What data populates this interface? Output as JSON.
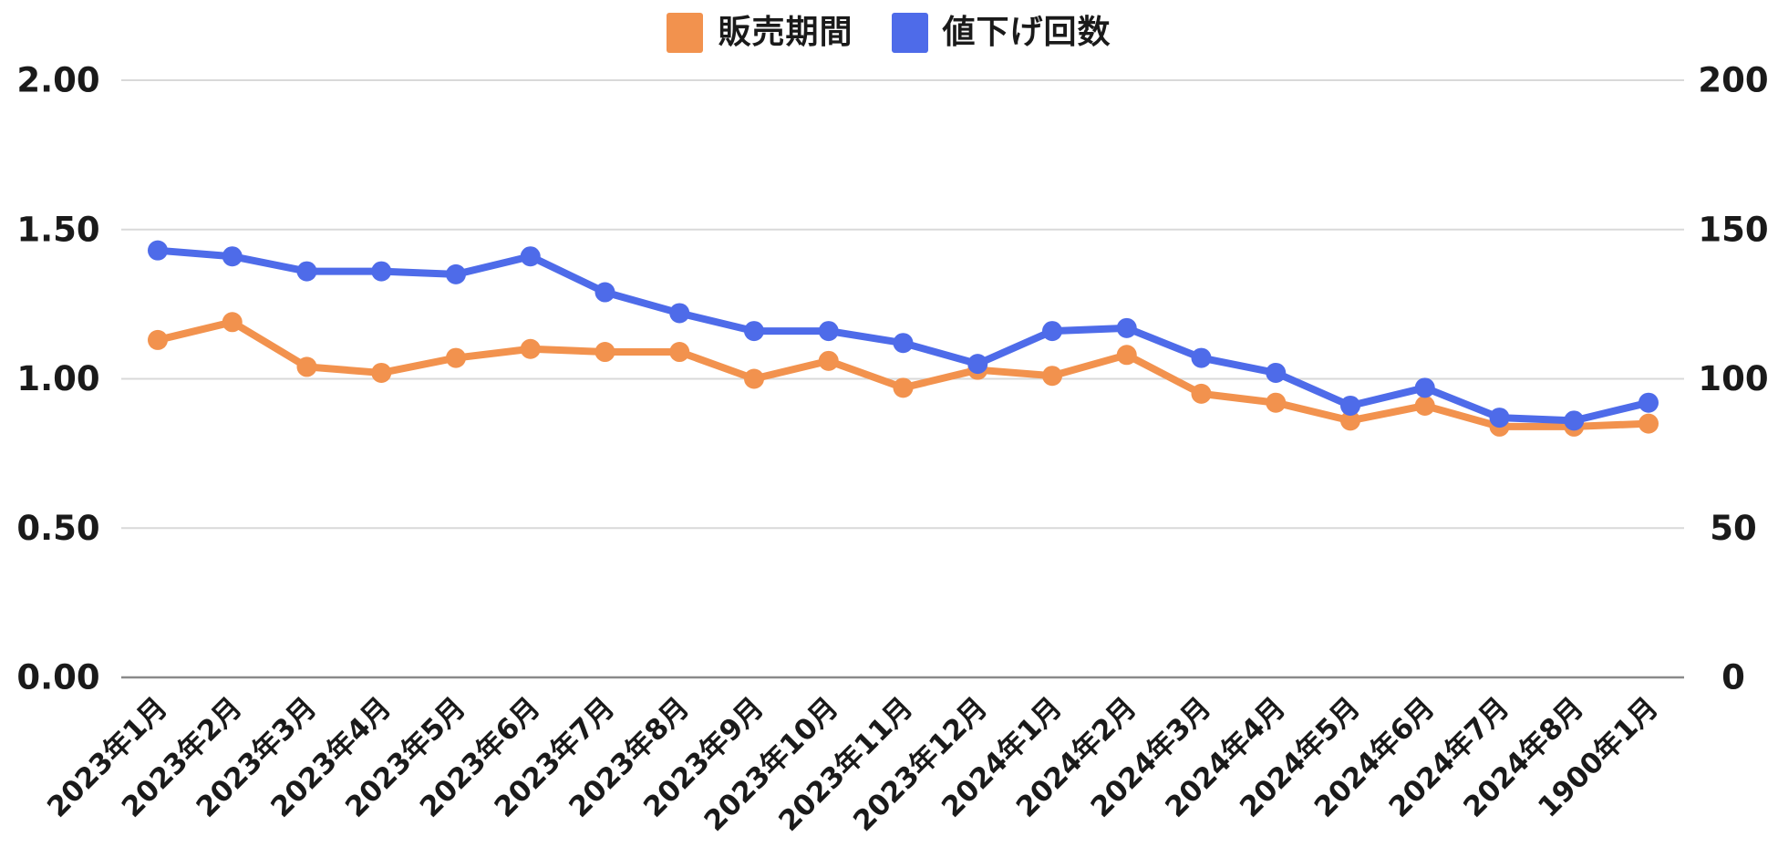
{
  "legend": [
    {
      "label": "販売期間",
      "color": "#F2924E",
      "swatch_icon": "orange-square-swatch"
    },
    {
      "label": "値下げ回数",
      "color": "#4E6BE9",
      "swatch_icon": "blue-square-swatch"
    }
  ],
  "chart_data": {
    "type": "line",
    "title": "",
    "legend_position": "top",
    "grid": true,
    "categories": [
      "2023年1月",
      "2023年2月",
      "2023年3月",
      "2023年4月",
      "2023年5月",
      "2023年6月",
      "2023年7月",
      "2023年8月",
      "2023年9月",
      "2023年10月",
      "2023年11月",
      "2023年12月",
      "2024年1月",
      "2024年2月",
      "2024年3月",
      "2024年4月",
      "2024年5月",
      "2024年6月",
      "2024年7月",
      "2024年8月",
      "1900年1月"
    ],
    "series": [
      {
        "name": "販売期間",
        "axis": "left",
        "color": "#F2924E",
        "values": [
          1.13,
          1.19,
          1.04,
          1.02,
          1.07,
          1.1,
          1.09,
          1.09,
          1.0,
          1.06,
          0.97,
          1.03,
          1.01,
          1.08,
          0.95,
          0.92,
          0.86,
          0.91,
          0.84,
          0.84,
          0.85
        ]
      },
      {
        "name": "値下げ回数",
        "axis": "right",
        "color": "#4E6BE9",
        "values": [
          143,
          141,
          136,
          136,
          135,
          141,
          129,
          122,
          116,
          116,
          112,
          105,
          116,
          117,
          107,
          102,
          91,
          97,
          87,
          86,
          92
        ]
      }
    ],
    "left_axis": {
      "min": 0,
      "max": 2,
      "ticks": [
        "2.00",
        "1.50",
        "1.00",
        "0.50",
        "0.00"
      ]
    },
    "right_axis": {
      "min": 0,
      "max": 200,
      "ticks": [
        "200",
        "150",
        "100",
        "50",
        "0"
      ]
    },
    "colors": {
      "grid": "#d9d9d9",
      "axis_line": "#8a8a8a",
      "tick_text": "#1a1a1a"
    }
  }
}
